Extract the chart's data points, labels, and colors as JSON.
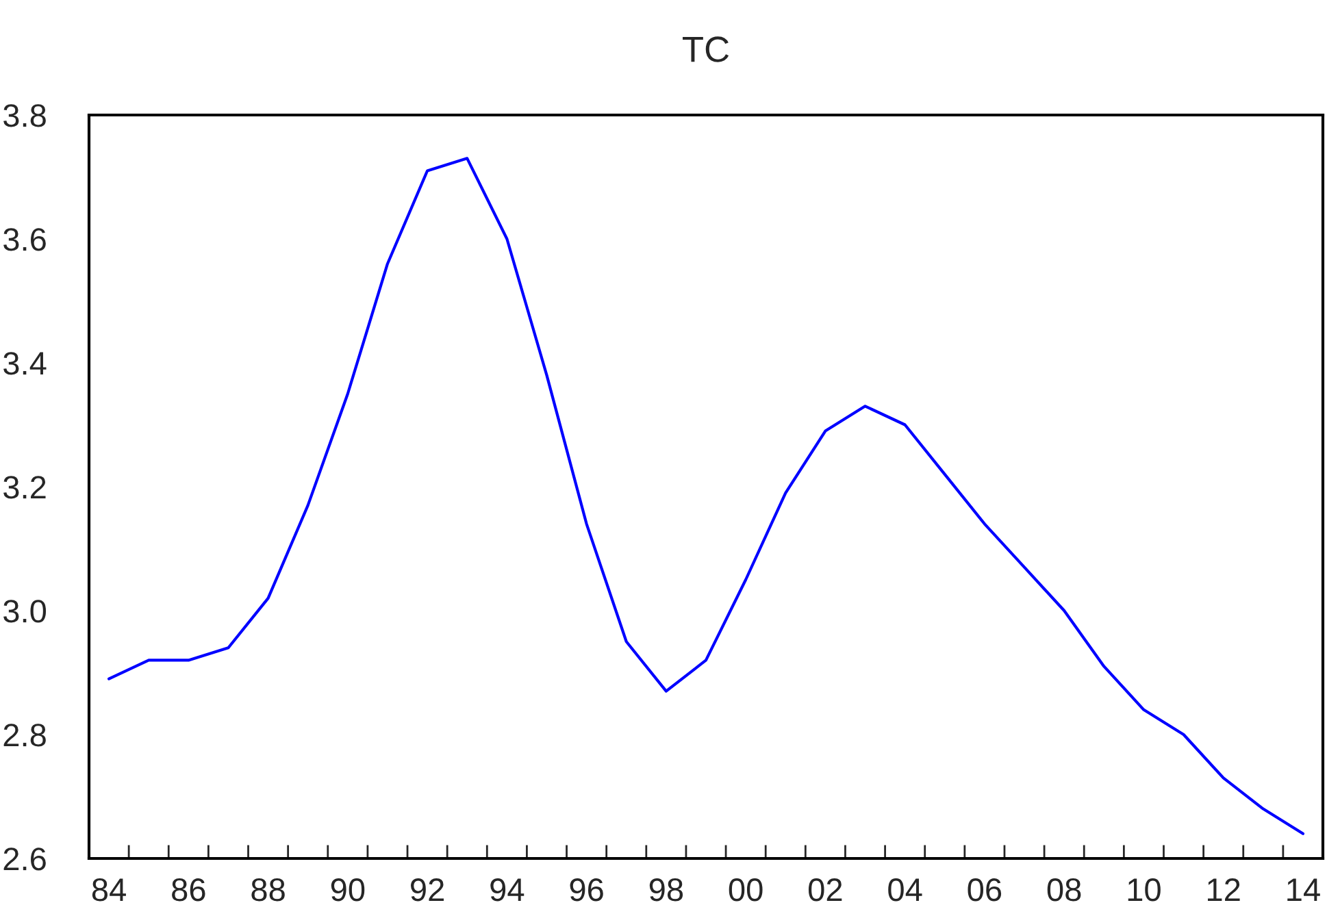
{
  "chart_data": {
    "type": "line",
    "title": "TC",
    "x": [
      1984,
      1985,
      1986,
      1987,
      1988,
      1989,
      1990,
      1991,
      1992,
      1993,
      1994,
      1995,
      1996,
      1997,
      1998,
      1999,
      2000,
      2001,
      2002,
      2003,
      2004,
      2005,
      2006,
      2007,
      2008,
      2009,
      2010,
      2011,
      2012,
      2013,
      2014
    ],
    "series": [
      {
        "color": "#0000ff",
        "values": [
          2.89,
          2.92,
          2.92,
          2.94,
          3.02,
          3.17,
          3.35,
          3.56,
          3.71,
          3.73,
          3.6,
          3.38,
          3.14,
          2.95,
          2.87,
          2.92,
          3.05,
          3.19,
          3.29,
          3.33,
          3.3,
          3.22,
          3.14,
          3.07,
          3.0,
          2.91,
          2.84,
          2.8,
          2.73,
          2.68,
          2.64
        ]
      }
    ],
    "xlim": [
      1983.5,
      2014.5
    ],
    "xticks": [
      {
        "value": 1983.5,
        "label": null
      },
      {
        "value": 1984,
        "label": "84"
      },
      {
        "value": 1984.5,
        "label": null
      },
      {
        "value": 1985.5,
        "label": null
      },
      {
        "value": 1986,
        "label": "86"
      },
      {
        "value": 1986.5,
        "label": null
      },
      {
        "value": 1987.5,
        "label": null
      },
      {
        "value": 1988,
        "label": "88"
      },
      {
        "value": 1988.5,
        "label": null
      },
      {
        "value": 1989.5,
        "label": null
      },
      {
        "value": 1990,
        "label": "90"
      },
      {
        "value": 1990.5,
        "label": null
      },
      {
        "value": 1991.5,
        "label": null
      },
      {
        "value": 1992,
        "label": "92"
      },
      {
        "value": 1992.5,
        "label": null
      },
      {
        "value": 1993.5,
        "label": null
      },
      {
        "value": 1994,
        "label": "94"
      },
      {
        "value": 1994.5,
        "label": null
      },
      {
        "value": 1995.5,
        "label": null
      },
      {
        "value": 1996,
        "label": "96"
      },
      {
        "value": 1996.5,
        "label": null
      },
      {
        "value": 1997.5,
        "label": null
      },
      {
        "value": 1998,
        "label": "98"
      },
      {
        "value": 1998.5,
        "label": null
      },
      {
        "value": 1999.5,
        "label": null
      },
      {
        "value": 2000,
        "label": "00"
      },
      {
        "value": 2000.5,
        "label": null
      },
      {
        "value": 2001.5,
        "label": null
      },
      {
        "value": 2002,
        "label": "02"
      },
      {
        "value": 2002.5,
        "label": null
      },
      {
        "value": 2003.5,
        "label": null
      },
      {
        "value": 2004,
        "label": "04"
      },
      {
        "value": 2004.5,
        "label": null
      },
      {
        "value": 2005.5,
        "label": null
      },
      {
        "value": 2006,
        "label": "06"
      },
      {
        "value": 2006.5,
        "label": null
      },
      {
        "value": 2007.5,
        "label": null
      },
      {
        "value": 2008,
        "label": "08"
      },
      {
        "value": 2008.5,
        "label": null
      },
      {
        "value": 2009.5,
        "label": null
      },
      {
        "value": 2010,
        "label": "10"
      },
      {
        "value": 2010.5,
        "label": null
      },
      {
        "value": 2011.5,
        "label": null
      },
      {
        "value": 2012,
        "label": "12"
      },
      {
        "value": 2012.5,
        "label": null
      },
      {
        "value": 2013.5,
        "label": null
      },
      {
        "value": 2014,
        "label": "14"
      },
      {
        "value": 2014.5,
        "label": null
      }
    ],
    "ylim": [
      2.6,
      3.8
    ],
    "yticks": [
      2.6,
      2.8,
      {
        "value": 3,
        "label": "3.0"
      },
      3.2,
      3.4,
      3.6,
      3.8
    ]
  }
}
